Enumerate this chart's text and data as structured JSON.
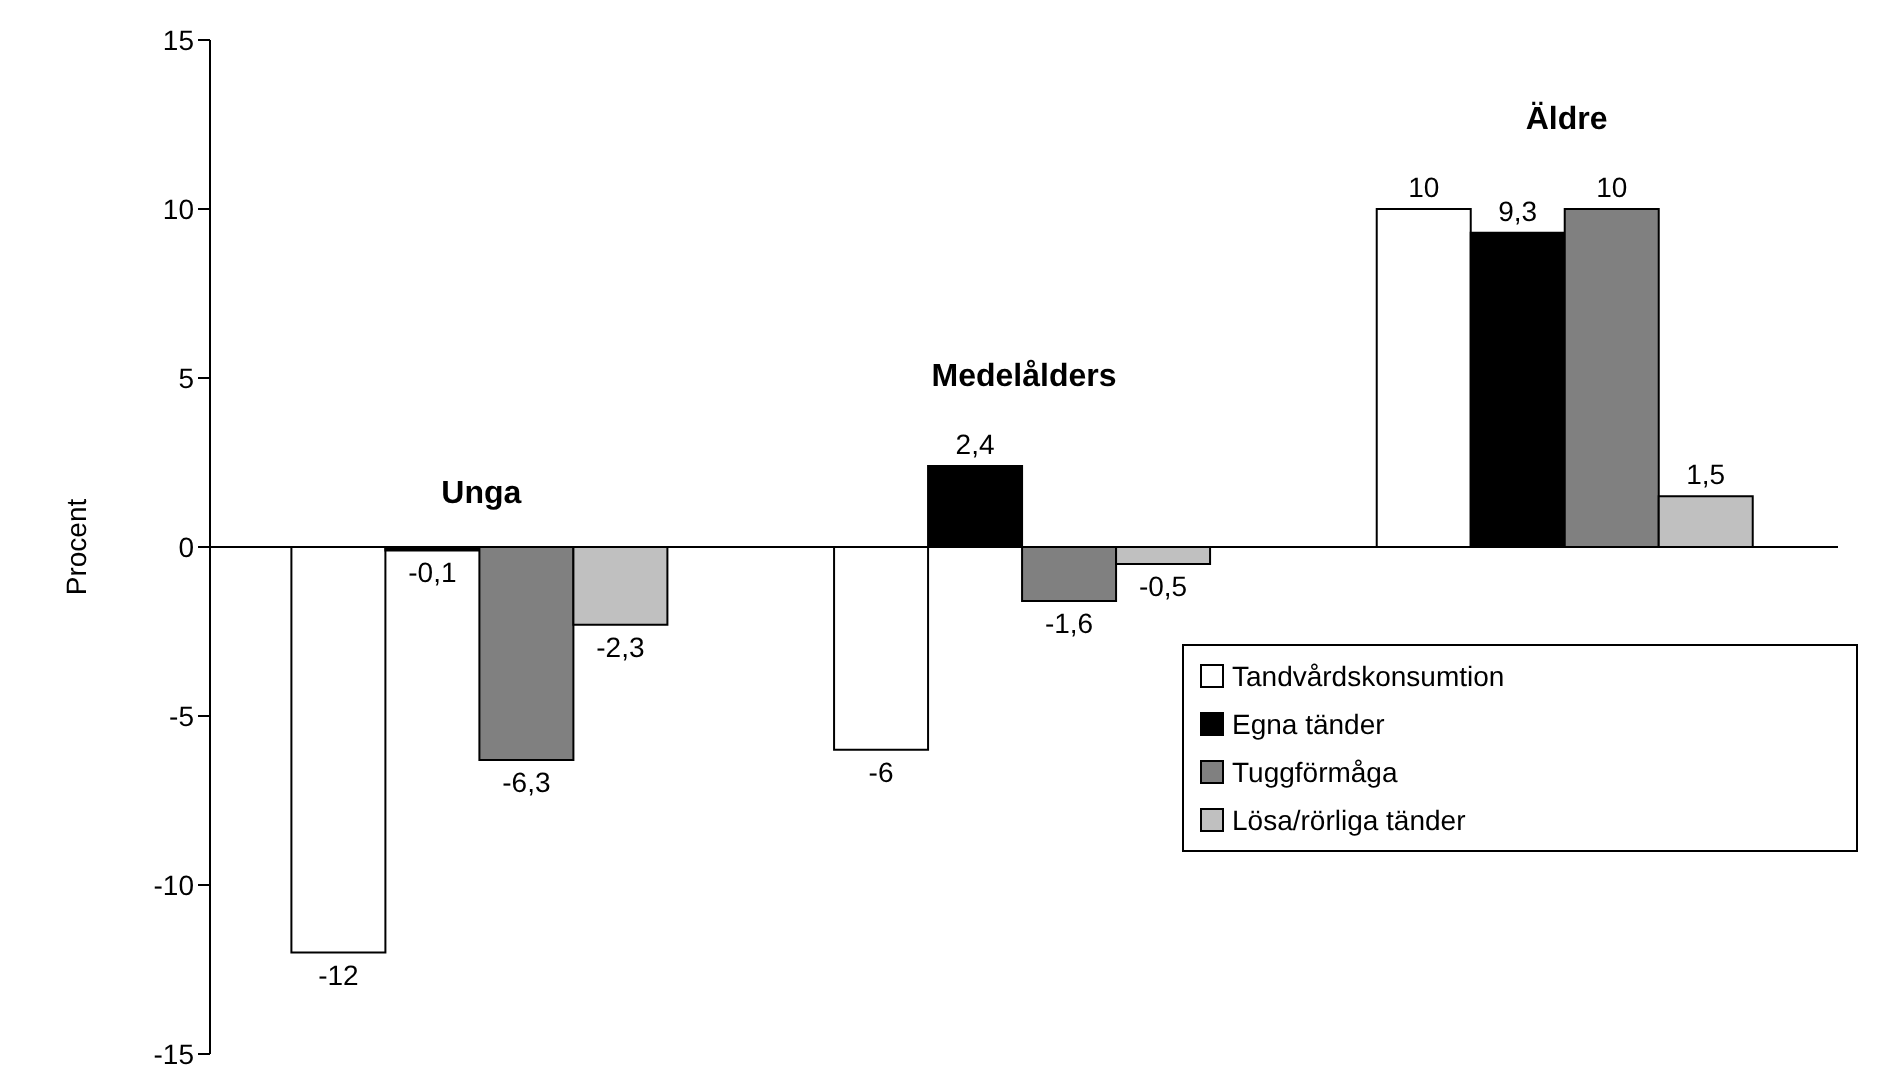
{
  "chart_data": {
    "type": "bar",
    "ylabel": "Procent",
    "categories": [
      null,
      null,
      null
    ],
    "series": [
      {
        "name": "Tandvårdskonsumtion",
        "color": "#ffffff",
        "values": [
          -12,
          -6,
          10
        ],
        "value_labels": [
          "-12",
          "-6",
          "10"
        ]
      },
      {
        "name": "Egna tänder",
        "color": "#000000",
        "values": [
          -0.1,
          2.4,
          9.3
        ],
        "value_labels": [
          "-0,1",
          "2,4",
          "9,3"
        ]
      },
      {
        "name": "Tuggförmåga",
        "color": "#808080",
        "values": [
          -6.3,
          -1.6,
          10
        ],
        "value_labels": [
          "-6,3",
          "-1,6",
          "10"
        ]
      },
      {
        "name": "Lösa/rörliga tänder",
        "color": "#c0c0c0",
        "values": [
          -2.3,
          -0.5,
          1.5
        ],
        "value_labels": [
          "-2,3",
          "-0,5",
          "1,5"
        ]
      }
    ],
    "annotations": [
      "Unga",
      "Medelålders",
      "Äldre"
    ],
    "ylim": [
      -15,
      15
    ],
    "yticks": [
      -15,
      -10,
      -5,
      0,
      5,
      10,
      15
    ],
    "tick_labels": "y",
    "legend": "bottom right"
  }
}
